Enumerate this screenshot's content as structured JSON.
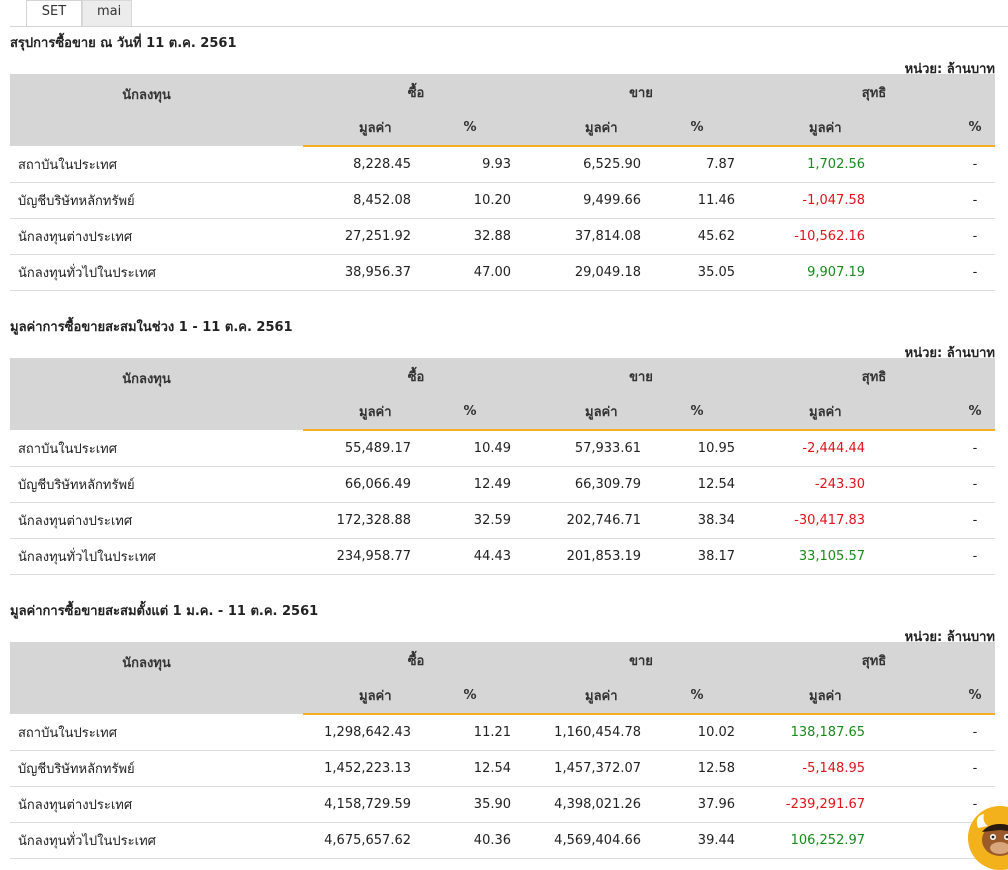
{
  "tabs": [
    {
      "label": "SET",
      "active": true
    },
    {
      "label": "mai",
      "active": false
    }
  ],
  "unit_label": "หน่วย: ล้านบาท",
  "headers": {
    "investor": "นักลงทุน",
    "buy": "ซื้อ",
    "sell": "ขาย",
    "net": "สุทธิ",
    "value": "มูลค่า",
    "percent": "%"
  },
  "colors": {
    "positive": "#1a8a1a",
    "negative": "#e0121a",
    "accent": "#f5b025",
    "header_bg": "#d6d6d6"
  },
  "mascot": {
    "icon": "bull-mascot-icon"
  },
  "sections": [
    {
      "title": "สรุปการซื้อขาย ณ วันที่ 11 ต.ค. 2561",
      "rows": [
        {
          "name": "สถาบันในประเทศ",
          "buy": "8,228.45",
          "buy_pct": "9.93",
          "sell": "6,525.90",
          "sell_pct": "7.87",
          "net": "1,702.56",
          "net_pct": "-"
        },
        {
          "name": "บัญชีบริษัทหลักทรัพย์",
          "buy": "8,452.08",
          "buy_pct": "10.20",
          "sell": "9,499.66",
          "sell_pct": "11.46",
          "net": "-1,047.58",
          "net_pct": "-"
        },
        {
          "name": "นักลงทุนต่างประเทศ",
          "buy": "27,251.92",
          "buy_pct": "32.88",
          "sell": "37,814.08",
          "sell_pct": "45.62",
          "net": "-10,562.16",
          "net_pct": "-"
        },
        {
          "name": "นักลงทุนทั่วไปในประเทศ",
          "buy": "38,956.37",
          "buy_pct": "47.00",
          "sell": "29,049.18",
          "sell_pct": "35.05",
          "net": "9,907.19",
          "net_pct": "-"
        }
      ]
    },
    {
      "title": "มูลค่าการซื้อขายสะสมในช่วง 1 - 11 ต.ค. 2561",
      "rows": [
        {
          "name": "สถาบันในประเทศ",
          "buy": "55,489.17",
          "buy_pct": "10.49",
          "sell": "57,933.61",
          "sell_pct": "10.95",
          "net": "-2,444.44",
          "net_pct": "-"
        },
        {
          "name": "บัญชีบริษัทหลักทรัพย์",
          "buy": "66,066.49",
          "buy_pct": "12.49",
          "sell": "66,309.79",
          "sell_pct": "12.54",
          "net": "-243.30",
          "net_pct": "-"
        },
        {
          "name": "นักลงทุนต่างประเทศ",
          "buy": "172,328.88",
          "buy_pct": "32.59",
          "sell": "202,746.71",
          "sell_pct": "38.34",
          "net": "-30,417.83",
          "net_pct": "-"
        },
        {
          "name": "นักลงทุนทั่วไปในประเทศ",
          "buy": "234,958.77",
          "buy_pct": "44.43",
          "sell": "201,853.19",
          "sell_pct": "38.17",
          "net": "33,105.57",
          "net_pct": "-"
        }
      ]
    },
    {
      "title": "มูลค่าการซื้อขายสะสมตั้งแต่ 1 ม.ค. - 11 ต.ค. 2561",
      "rows": [
        {
          "name": "สถาบันในประเทศ",
          "buy": "1,298,642.43",
          "buy_pct": "11.21",
          "sell": "1,160,454.78",
          "sell_pct": "10.02",
          "net": "138,187.65",
          "net_pct": "-"
        },
        {
          "name": "บัญชีบริษัทหลักทรัพย์",
          "buy": "1,452,223.13",
          "buy_pct": "12.54",
          "sell": "1,457,372.07",
          "sell_pct": "12.58",
          "net": "-5,148.95",
          "net_pct": "-"
        },
        {
          "name": "นักลงทุนต่างประเทศ",
          "buy": "4,158,729.59",
          "buy_pct": "35.90",
          "sell": "4,398,021.26",
          "sell_pct": "37.96",
          "net": "-239,291.67",
          "net_pct": "-"
        },
        {
          "name": "นักลงทุนทั่วไปในประเทศ",
          "buy": "4,675,657.62",
          "buy_pct": "40.36",
          "sell": "4,569,404.66",
          "sell_pct": "39.44",
          "net": "106,252.97",
          "net_pct": "-"
        }
      ]
    }
  ]
}
